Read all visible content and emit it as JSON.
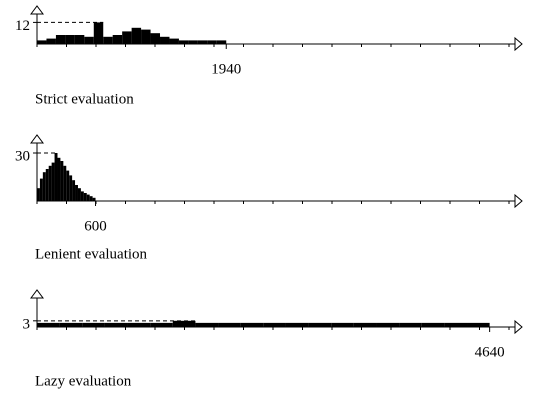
{
  "chart_data": [
    {
      "type": "histogram",
      "title": "Strict evaluation",
      "color": "#000000",
      "bins": [
        0,
        97,
        194,
        291,
        388,
        485,
        582,
        679,
        776,
        873,
        970,
        1067,
        1164,
        1261,
        1358,
        1455,
        1552,
        1649,
        1746,
        1843,
        1940
      ],
      "values": [
        2,
        3,
        5,
        5,
        5,
        4,
        12,
        4,
        5,
        7,
        9,
        8,
        6,
        4,
        3,
        2,
        2,
        2,
        2,
        2
      ],
      "xlim": [
        0,
        4900
      ],
      "ylim": [
        0,
        20
      ],
      "yticks": [
        12
      ],
      "xticks": [
        1940
      ]
    },
    {
      "type": "histogram",
      "title": "Lenient evaluation",
      "color": "#000000",
      "bins": [
        0,
        30,
        60,
        90,
        120,
        150,
        180,
        210,
        240,
        270,
        300,
        330,
        360,
        390,
        420,
        450,
        480,
        510,
        540,
        570,
        600
      ],
      "values": [
        8,
        14,
        18,
        20,
        22,
        24,
        30,
        27,
        25,
        22,
        19,
        16,
        13,
        10,
        8,
        6,
        5,
        4,
        3,
        2
      ],
      "xlim": [
        0,
        4900
      ],
      "ylim": [
        0,
        40
      ],
      "yticks": [
        30
      ],
      "xticks": [
        600
      ]
    },
    {
      "type": "histogram",
      "title": "Lazy evaluation",
      "color": "#000000",
      "bins": [
        0,
        232,
        464,
        696,
        928,
        1160,
        1392,
        1624,
        1856,
        2088,
        2320,
        2552,
        2784,
        3016,
        3248,
        3480,
        3712,
        3944,
        4176,
        4408,
        4640
      ],
      "values": [
        2,
        2,
        2,
        2,
        2,
        2,
        3,
        2,
        2,
        2,
        2,
        2,
        2,
        2,
        2,
        2,
        2,
        2,
        2,
        2
      ],
      "xlim": [
        0,
        4900
      ],
      "ylim": [
        0,
        17
      ],
      "yticks": [
        3
      ],
      "xticks": [
        4640
      ]
    }
  ]
}
